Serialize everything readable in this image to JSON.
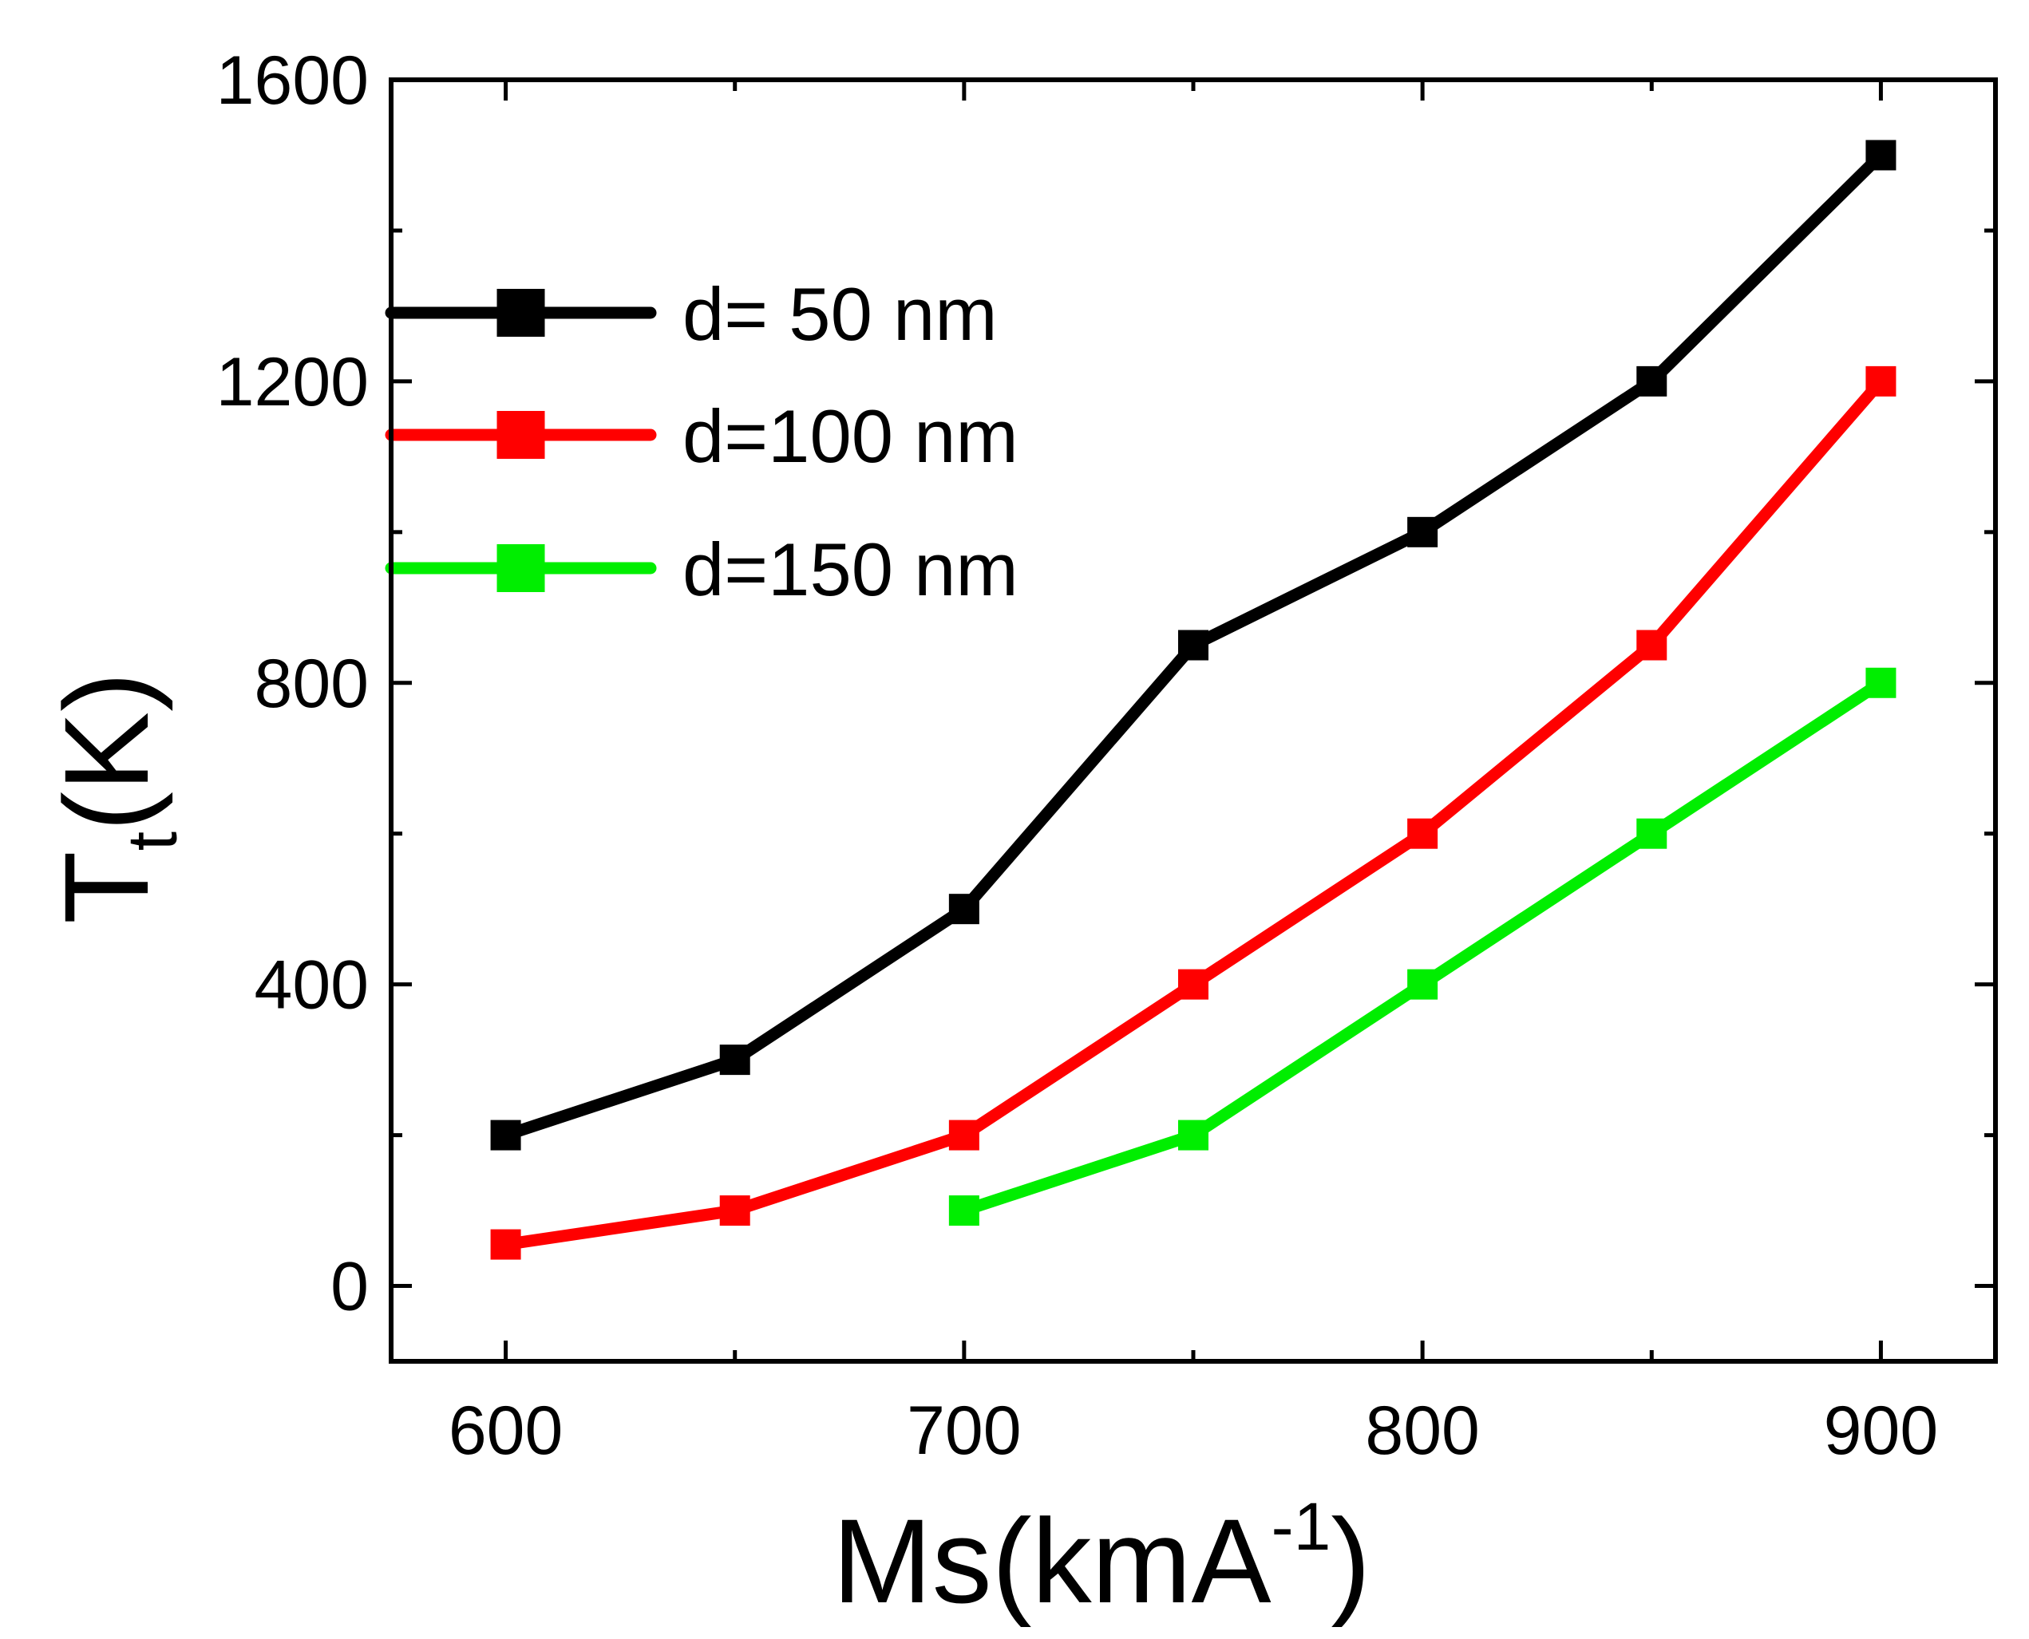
{
  "chart_data": {
    "type": "line",
    "title": "",
    "xlabel": "Ms(kmA",
    "xlabel_superscript": "-1",
    "xlabel_close": ")",
    "ylabel": "T",
    "ylabel_subscript": "t",
    "ylabel_unit": "(K)",
    "xlim": [
      575,
      925
    ],
    "ylim": [
      -100,
      1600
    ],
    "xticks": [
      600,
      700,
      800,
      900
    ],
    "xtick_labels": [
      "600",
      "700",
      "800",
      "900"
    ],
    "yticks": [
      0,
      400,
      800,
      1200,
      1600
    ],
    "ytick_labels": [
      "0",
      "400",
      "800",
      "1200",
      "1600"
    ],
    "legend_position": "upper-left",
    "grid": false,
    "series": [
      {
        "name": "d= 50 nm",
        "color": "#000000",
        "marker": "square",
        "x": [
          600,
          650,
          700,
          750,
          800,
          850,
          900
        ],
        "y": [
          200,
          300,
          500,
          850,
          1000,
          1200,
          1500
        ]
      },
      {
        "name": "d=100 nm",
        "color": "#ff0000",
        "marker": "square",
        "x": [
          600,
          650,
          700,
          750,
          800,
          850,
          900
        ],
        "y": [
          55,
          100,
          200,
          400,
          600,
          850,
          1200
        ]
      },
      {
        "name": "d=150 nm",
        "color": "#00ee00",
        "marker": "square",
        "x": [
          700,
          750,
          800,
          850,
          900
        ],
        "y": [
          100,
          200,
          400,
          600,
          800
        ]
      }
    ]
  }
}
